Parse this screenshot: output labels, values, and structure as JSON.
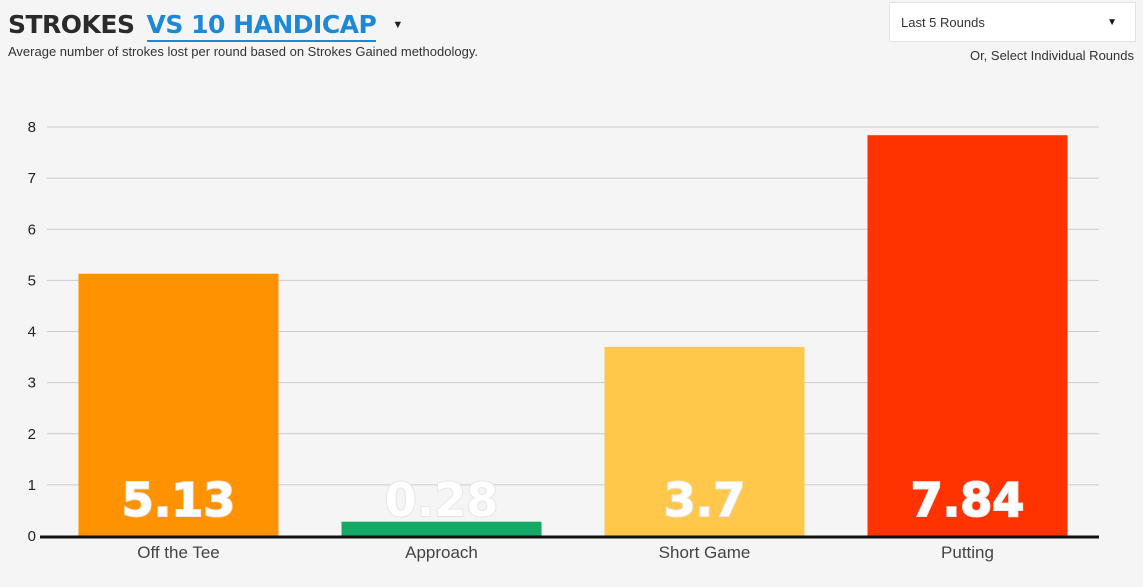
{
  "header": {
    "title": "STROKES",
    "comparison": "VS 10 HANDICAP",
    "subtitle": "Average number of strokes lost per round based on Strokes Gained methodology."
  },
  "round_filter": {
    "selected": "Last 5 Rounds",
    "alt_link": "Or, Select Individual Rounds"
  },
  "chart_data": {
    "type": "bar",
    "categories": [
      "Off the Tee",
      "Approach",
      "Short Game",
      "Putting"
    ],
    "values": [
      5.13,
      0.28,
      3.7,
      7.84
    ],
    "value_labels": [
      "5.13",
      "0.28",
      "3.7",
      "7.84"
    ],
    "colors": [
      "#ff9200",
      "#16a865",
      "#ffc84a",
      "#ff3300"
    ],
    "y_ticks": [
      "0",
      "1",
      "2",
      "3",
      "4",
      "5",
      "6",
      "7",
      "8"
    ],
    "ylim": [
      0,
      8
    ],
    "grid": true
  }
}
